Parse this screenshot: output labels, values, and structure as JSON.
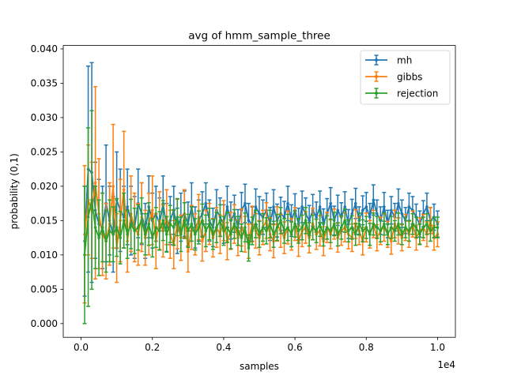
{
  "chart_data": {
    "type": "line",
    "title": "avg of hmm_sample_three",
    "xlabel": "samples",
    "ylabel": "probability (0,1)",
    "x_offset_label": "1e4",
    "xlim": [
      -500,
      10500
    ],
    "ylim": [
      -0.002,
      0.0405
    ],
    "x_ticks": [
      0,
      2000,
      4000,
      6000,
      8000,
      10000
    ],
    "x_tick_labels": [
      "0.0",
      "0.2",
      "0.4",
      "0.6",
      "0.8",
      "1.0"
    ],
    "y_ticks": [
      0.0,
      0.005,
      0.01,
      0.015,
      0.02,
      0.025,
      0.03,
      0.035,
      0.04
    ],
    "y_tick_labels": [
      "0.000",
      "0.005",
      "0.010",
      "0.015",
      "0.020",
      "0.025",
      "0.030",
      "0.035",
      "0.040"
    ],
    "grid": false,
    "legend_position": "top-right",
    "x": [
      100,
      200,
      300,
      400,
      500,
      600,
      700,
      800,
      900,
      1000,
      1100,
      1200,
      1300,
      1400,
      1500,
      1600,
      1700,
      1800,
      1900,
      2000,
      2100,
      2200,
      2300,
      2400,
      2500,
      2600,
      2700,
      2800,
      2900,
      3000,
      3100,
      3200,
      3300,
      3400,
      3500,
      3600,
      3700,
      3800,
      3900,
      4000,
      4100,
      4200,
      4300,
      4400,
      4500,
      4600,
      4700,
      4800,
      4900,
      5000,
      5100,
      5200,
      5300,
      5400,
      5500,
      5600,
      5700,
      5800,
      5900,
      6000,
      6100,
      6200,
      6300,
      6400,
      6500,
      6600,
      6700,
      6800,
      6900,
      7000,
      7100,
      7200,
      7300,
      7400,
      7500,
      7600,
      7700,
      7800,
      7900,
      8000,
      8100,
      8200,
      8300,
      8400,
      8500,
      8600,
      8700,
      8800,
      8900,
      9000,
      9100,
      9200,
      9300,
      9400,
      9500,
      9600,
      9700,
      9800,
      9900,
      10000
    ],
    "series": [
      {
        "name": "mh",
        "color": "#1f77b4",
        "values": [
          0.012,
          0.0225,
          0.022,
          0.0165,
          0.0145,
          0.014,
          0.0175,
          0.015,
          0.013,
          0.018,
          0.0165,
          0.0155,
          0.017,
          0.015,
          0.014,
          0.0175,
          0.016,
          0.0135,
          0.017,
          0.015,
          0.016,
          0.0145,
          0.0175,
          0.014,
          0.015,
          0.0165,
          0.0135,
          0.0155,
          0.016,
          0.0145,
          0.017,
          0.014,
          0.015,
          0.016,
          0.0175,
          0.015,
          0.014,
          0.0165,
          0.0155,
          0.0145,
          0.017,
          0.015,
          0.016,
          0.014,
          0.0165,
          0.0175,
          0.015,
          0.0145,
          0.017,
          0.016,
          0.0155,
          0.0165,
          0.0145,
          0.017,
          0.015,
          0.016,
          0.0155,
          0.0175,
          0.015,
          0.0165,
          0.0145,
          0.017,
          0.016,
          0.015,
          0.0165,
          0.0155,
          0.017,
          0.0145,
          0.016,
          0.0175,
          0.015,
          0.0165,
          0.0155,
          0.017,
          0.0145,
          0.016,
          0.0175,
          0.015,
          0.0165,
          0.017,
          0.0155,
          0.018,
          0.016,
          0.015,
          0.017,
          0.0145,
          0.0165,
          0.0155,
          0.0175,
          0.016,
          0.015,
          0.017,
          0.0165,
          0.0155,
          0.0145,
          0.016,
          0.017,
          0.015,
          0.0155,
          0.0145
        ],
        "errors": [
          0.008,
          0.015,
          0.016,
          0.007,
          0.0065,
          0.006,
          0.0085,
          0.005,
          0.0055,
          0.007,
          0.006,
          0.0045,
          0.0055,
          0.005,
          0.0045,
          0.005,
          0.0045,
          0.004,
          0.0045,
          0.004,
          0.004,
          0.0038,
          0.004,
          0.0035,
          0.0035,
          0.0035,
          0.0033,
          0.0035,
          0.0033,
          0.0032,
          0.0035,
          0.003,
          0.003,
          0.0032,
          0.003,
          0.003,
          0.0028,
          0.003,
          0.0028,
          0.0028,
          0.003,
          0.0027,
          0.0027,
          0.0026,
          0.0026,
          0.0028,
          0.0025,
          0.0025,
          0.0026,
          0.0025,
          0.0025,
          0.0025,
          0.0024,
          0.0025,
          0.0024,
          0.0024,
          0.0023,
          0.0025,
          0.0023,
          0.0024,
          0.0023,
          0.0023,
          0.0023,
          0.0022,
          0.0023,
          0.0022,
          0.0023,
          0.0022,
          0.0022,
          0.0023,
          0.0021,
          0.0022,
          0.0021,
          0.0022,
          0.0021,
          0.0021,
          0.0022,
          0.002,
          0.0021,
          0.0021,
          0.002,
          0.0022,
          0.002,
          0.002,
          0.0021,
          0.002,
          0.002,
          0.002,
          0.0021,
          0.002,
          0.0019,
          0.002,
          0.002,
          0.0019,
          0.0019,
          0.0019,
          0.002,
          0.0019,
          0.0019,
          0.0019
        ]
      },
      {
        "name": "gibbs",
        "color": "#ff7f0e",
        "values": [
          0.013,
          0.018,
          0.0165,
          0.0205,
          0.016,
          0.013,
          0.012,
          0.0145,
          0.02,
          0.011,
          0.015,
          0.0195,
          0.012,
          0.016,
          0.014,
          0.013,
          0.0155,
          0.0125,
          0.0145,
          0.0165,
          0.012,
          0.015,
          0.0135,
          0.0155,
          0.013,
          0.0115,
          0.0145,
          0.0125,
          0.016,
          0.0105,
          0.014,
          0.013,
          0.0155,
          0.012,
          0.0135,
          0.0145,
          0.0125,
          0.014,
          0.013,
          0.015,
          0.012,
          0.0135,
          0.0145,
          0.0125,
          0.014,
          0.013,
          0.012,
          0.0145,
          0.0135,
          0.0125,
          0.014,
          0.015,
          0.013,
          0.012,
          0.0145,
          0.0135,
          0.0125,
          0.014,
          0.013,
          0.0145,
          0.012,
          0.0135,
          0.014,
          0.0125,
          0.0145,
          0.013,
          0.0135,
          0.012,
          0.014,
          0.013,
          0.0145,
          0.0125,
          0.0135,
          0.014,
          0.013,
          0.0125,
          0.0145,
          0.0135,
          0.012,
          0.014,
          0.013,
          0.0145,
          0.0125,
          0.0135,
          0.014,
          0.013,
          0.012,
          0.0145,
          0.0135,
          0.0125,
          0.014,
          0.013,
          0.0145,
          0.0125,
          0.0135,
          0.014,
          0.013,
          0.015,
          0.0125,
          0.013
        ],
        "errors": [
          0.01,
          0.008,
          0.007,
          0.014,
          0.008,
          0.006,
          0.0055,
          0.006,
          0.009,
          0.005,
          0.006,
          0.0085,
          0.0045,
          0.0055,
          0.005,
          0.0045,
          0.005,
          0.004,
          0.0045,
          0.005,
          0.004,
          0.0042,
          0.0038,
          0.004,
          0.0035,
          0.0035,
          0.0036,
          0.0033,
          0.0035,
          0.003,
          0.0032,
          0.003,
          0.0033,
          0.0029,
          0.003,
          0.003,
          0.0028,
          0.0029,
          0.0028,
          0.0029,
          0.0027,
          0.0027,
          0.0028,
          0.0026,
          0.0027,
          0.0026,
          0.0025,
          0.0026,
          0.0025,
          0.0025,
          0.0025,
          0.0026,
          0.0024,
          0.0024,
          0.0025,
          0.0024,
          0.0023,
          0.0024,
          0.0023,
          0.0024,
          0.0022,
          0.0023,
          0.0023,
          0.0022,
          0.0023,
          0.0022,
          0.0022,
          0.0021,
          0.0022,
          0.0021,
          0.0022,
          0.0021,
          0.0021,
          0.0021,
          0.0021,
          0.002,
          0.0021,
          0.002,
          0.002,
          0.0021,
          0.002,
          0.002,
          0.0019,
          0.002,
          0.002,
          0.0019,
          0.0019,
          0.002,
          0.0019,
          0.0019,
          0.0019,
          0.0019,
          0.0019,
          0.0018,
          0.0019,
          0.0019,
          0.0018,
          0.0019,
          0.0018,
          0.0018
        ]
      },
      {
        "name": "rejection",
        "color": "#2ca02c",
        "values": [
          0.01,
          0.0155,
          0.018,
          0.014,
          0.0125,
          0.014,
          0.012,
          0.0135,
          0.013,
          0.014,
          0.0125,
          0.015,
          0.013,
          0.0145,
          0.0135,
          0.014,
          0.015,
          0.013,
          0.0145,
          0.0125,
          0.014,
          0.0135,
          0.015,
          0.013,
          0.0145,
          0.014,
          0.0155,
          0.013,
          0.015,
          0.0135,
          0.0145,
          0.013,
          0.014,
          0.015,
          0.0135,
          0.0145,
          0.013,
          0.014,
          0.015,
          0.0135,
          0.014,
          0.013,
          0.0145,
          0.0135,
          0.0125,
          0.014,
          0.011,
          0.0135,
          0.0145,
          0.013,
          0.014,
          0.0135,
          0.0145,
          0.013,
          0.014,
          0.015,
          0.0135,
          0.014,
          0.013,
          0.0145,
          0.0135,
          0.014,
          0.015,
          0.013,
          0.014,
          0.0135,
          0.0145,
          0.013,
          0.014,
          0.0135,
          0.0145,
          0.013,
          0.014,
          0.015,
          0.0135,
          0.014,
          0.013,
          0.0145,
          0.0135,
          0.014,
          0.013,
          0.0145,
          0.014,
          0.0135,
          0.0145,
          0.013,
          0.014,
          0.0135,
          0.0145,
          0.013,
          0.014,
          0.0135,
          0.0145,
          0.014,
          0.013,
          0.014,
          0.0145,
          0.0135,
          0.014,
          0.014
        ],
        "errors": [
          0.01,
          0.013,
          0.013,
          0.006,
          0.0055,
          0.005,
          0.0045,
          0.0045,
          0.004,
          0.0042,
          0.0038,
          0.004,
          0.0035,
          0.0036,
          0.0033,
          0.0033,
          0.0033,
          0.003,
          0.0031,
          0.0028,
          0.0029,
          0.0028,
          0.0029,
          0.0026,
          0.0027,
          0.0026,
          0.0027,
          0.0025,
          0.0026,
          0.0024,
          0.0025,
          0.0023,
          0.0024,
          0.0024,
          0.0023,
          0.0023,
          0.0022,
          0.0022,
          0.0023,
          0.0021,
          0.0022,
          0.0021,
          0.0021,
          0.0021,
          0.002,
          0.0021,
          0.0019,
          0.002,
          0.002,
          0.0019,
          0.002,
          0.0019,
          0.002,
          0.0019,
          0.0019,
          0.0019,
          0.0018,
          0.0019,
          0.0018,
          0.0019,
          0.0018,
          0.0018,
          0.0019,
          0.0017,
          0.0018,
          0.0017,
          0.0018,
          0.0017,
          0.0017,
          0.0017,
          0.0017,
          0.0017,
          0.0017,
          0.0017,
          0.0016,
          0.0017,
          0.0016,
          0.0016,
          0.0016,
          0.0016,
          0.0016,
          0.0016,
          0.0016,
          0.0016,
          0.0016,
          0.0015,
          0.0016,
          0.0015,
          0.0016,
          0.0015,
          0.0015,
          0.0015,
          0.0015,
          0.0015,
          0.0015,
          0.0015,
          0.0015,
          0.0015,
          0.0015,
          0.0015
        ]
      }
    ]
  }
}
